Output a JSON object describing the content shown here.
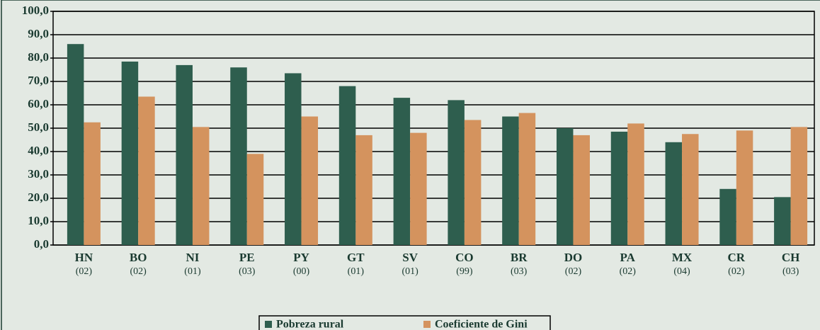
{
  "chart_data": {
    "type": "bar",
    "categories": [
      [
        "HN",
        "(02)"
      ],
      [
        "BO",
        "(02)"
      ],
      [
        "NI",
        "(01)"
      ],
      [
        "PE",
        "(03)"
      ],
      [
        "PY",
        "(00)"
      ],
      [
        "GT",
        "(01)"
      ],
      [
        "SV",
        "(01)"
      ],
      [
        "CO",
        "(99)"
      ],
      [
        "BR",
        "(03)"
      ],
      [
        "DO",
        "(02)"
      ],
      [
        "PA",
        "(02)"
      ],
      [
        "MX",
        "(04)"
      ],
      [
        "CR",
        "(02)"
      ],
      [
        "CH",
        "(03)"
      ]
    ],
    "series": [
      {
        "name": "Pobreza rural",
        "color": "#2e5e4e",
        "values": [
          86,
          78.5,
          77,
          76,
          73.5,
          68,
          63,
          62,
          55,
          50,
          48.5,
          44,
          24,
          20.5
        ]
      },
      {
        "name": "Coeficiente de Gini",
        "color": "#d4935e",
        "values": [
          52.5,
          63.5,
          50.5,
          39,
          55,
          47,
          48,
          53.5,
          56.5,
          47,
          52,
          47.5,
          49,
          50.5
        ]
      }
    ],
    "ylim": [
      0,
      100
    ],
    "yticks": [
      {
        "value": 0,
        "label": "0,0"
      },
      {
        "value": 10,
        "label": "10,0"
      },
      {
        "value": 20,
        "label": "20,0"
      },
      {
        "value": 30,
        "label": "30,0"
      },
      {
        "value": 40,
        "label": "40,0"
      },
      {
        "value": 50,
        "label": "50,0"
      },
      {
        "value": 60,
        "label": "60,0"
      },
      {
        "value": 70,
        "label": "70,0"
      },
      {
        "value": 80,
        "label": "80,0"
      },
      {
        "value": 90,
        "label": "90,0"
      },
      {
        "value": 100,
        "label": "100,0"
      }
    ],
    "grid": true,
    "legend": "bottom"
  }
}
